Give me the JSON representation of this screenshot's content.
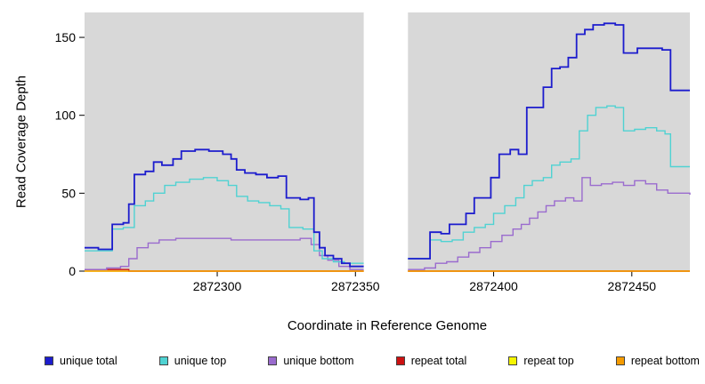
{
  "chart_data": {
    "type": "line",
    "subtype": "step",
    "title": "",
    "xlabel": "Coordinate in Reference Genome",
    "ylabel": "Read Coverage Depth",
    "xlim": [
      2872252,
      2872471
    ],
    "ylim": [
      0,
      166
    ],
    "x_ticks": [
      2872300,
      2872350,
      2872400,
      2872450
    ],
    "y_ticks": [
      0,
      50,
      100,
      150
    ],
    "gap_region": [
      2872353,
      2872369
    ],
    "panel_background": "#d8d8d8",
    "gap_color": "#ffffff",
    "legend_position": "bottom",
    "grid": false,
    "draw_order": [
      4,
      3,
      5,
      2,
      1,
      0
    ],
    "series": [
      {
        "name": "unique total",
        "color": "#1c1ccd",
        "width": 1.8,
        "segments": [
          [
            [
              2872252,
              15
            ],
            [
              2872257,
              14
            ],
            [
              2872262,
              30
            ],
            [
              2872266,
              31
            ],
            [
              2872268,
              43
            ],
            [
              2872270,
              62
            ],
            [
              2872274,
              64
            ],
            [
              2872277,
              70
            ],
            [
              2872280,
              68
            ],
            [
              2872284,
              72
            ],
            [
              2872287,
              77
            ],
            [
              2872292,
              78
            ],
            [
              2872297,
              77
            ],
            [
              2872302,
              75
            ],
            [
              2872305,
              72
            ],
            [
              2872307,
              65
            ],
            [
              2872310,
              63
            ],
            [
              2872314,
              62
            ],
            [
              2872318,
              60
            ],
            [
              2872322,
              61
            ],
            [
              2872325,
              47
            ],
            [
              2872330,
              46
            ],
            [
              2872333,
              47
            ],
            [
              2872335,
              25
            ],
            [
              2872337,
              15
            ],
            [
              2872339,
              10
            ],
            [
              2872342,
              8
            ],
            [
              2872345,
              5
            ],
            [
              2872348,
              3
            ],
            [
              2872353,
              3
            ]
          ],
          [
            [
              2872369,
              8
            ],
            [
              2872374,
              8
            ],
            [
              2872377,
              25
            ],
            [
              2872381,
              24
            ],
            [
              2872384,
              30
            ],
            [
              2872387,
              30
            ],
            [
              2872390,
              37
            ],
            [
              2872393,
              47
            ],
            [
              2872396,
              47
            ],
            [
              2872399,
              60
            ],
            [
              2872402,
              75
            ],
            [
              2872406,
              78
            ],
            [
              2872409,
              75
            ],
            [
              2872412,
              105
            ],
            [
              2872415,
              105
            ],
            [
              2872418,
              118
            ],
            [
              2872421,
              130
            ],
            [
              2872424,
              131
            ],
            [
              2872427,
              137
            ],
            [
              2872430,
              152
            ],
            [
              2872433,
              155
            ],
            [
              2872436,
              158
            ],
            [
              2872440,
              159
            ],
            [
              2872444,
              158
            ],
            [
              2872447,
              140
            ],
            [
              2872450,
              140
            ],
            [
              2872452,
              143
            ],
            [
              2872457,
              143
            ],
            [
              2872461,
              142
            ],
            [
              2872464,
              116
            ],
            [
              2872471,
              116
            ]
          ]
        ]
      },
      {
        "name": "unique top",
        "color": "#4fd2d2",
        "width": 1.4,
        "segments": [
          [
            [
              2872252,
              13
            ],
            [
              2872262,
              27
            ],
            [
              2872266,
              28
            ],
            [
              2872270,
              42
            ],
            [
              2872274,
              45
            ],
            [
              2872277,
              50
            ],
            [
              2872281,
              55
            ],
            [
              2872285,
              57
            ],
            [
              2872290,
              59
            ],
            [
              2872295,
              60
            ],
            [
              2872300,
              58
            ],
            [
              2872304,
              55
            ],
            [
              2872307,
              48
            ],
            [
              2872311,
              45
            ],
            [
              2872315,
              44
            ],
            [
              2872319,
              42
            ],
            [
              2872323,
              40
            ],
            [
              2872326,
              28
            ],
            [
              2872331,
              27
            ],
            [
              2872335,
              13
            ],
            [
              2872338,
              8
            ],
            [
              2872342,
              6
            ],
            [
              2872346,
              5
            ],
            [
              2872353,
              5
            ]
          ],
          [
            [
              2872369,
              8
            ],
            [
              2872374,
              8
            ],
            [
              2872377,
              20
            ],
            [
              2872381,
              19
            ],
            [
              2872385,
              20
            ],
            [
              2872389,
              25
            ],
            [
              2872393,
              28
            ],
            [
              2872397,
              30
            ],
            [
              2872400,
              37
            ],
            [
              2872404,
              42
            ],
            [
              2872408,
              47
            ],
            [
              2872411,
              55
            ],
            [
              2872414,
              58
            ],
            [
              2872418,
              60
            ],
            [
              2872421,
              68
            ],
            [
              2872424,
              70
            ],
            [
              2872428,
              72
            ],
            [
              2872431,
              90
            ],
            [
              2872434,
              100
            ],
            [
              2872437,
              105
            ],
            [
              2872441,
              106
            ],
            [
              2872444,
              105
            ],
            [
              2872447,
              90
            ],
            [
              2872451,
              91
            ],
            [
              2872455,
              92
            ],
            [
              2872459,
              90
            ],
            [
              2872462,
              88
            ],
            [
              2872464,
              67
            ],
            [
              2872471,
              67
            ]
          ]
        ]
      },
      {
        "name": "unique bottom",
        "color": "#9a6bce",
        "width": 1.4,
        "segments": [
          [
            [
              2872252,
              1
            ],
            [
              2872260,
              2
            ],
            [
              2872265,
              3
            ],
            [
              2872268,
              8
            ],
            [
              2872271,
              15
            ],
            [
              2872275,
              18
            ],
            [
              2872279,
              20
            ],
            [
              2872285,
              21
            ],
            [
              2872295,
              21
            ],
            [
              2872305,
              20
            ],
            [
              2872315,
              20
            ],
            [
              2872324,
              20
            ],
            [
              2872330,
              21
            ],
            [
              2872334,
              17
            ],
            [
              2872337,
              10
            ],
            [
              2872340,
              7
            ],
            [
              2872344,
              3
            ],
            [
              2872348,
              1
            ],
            [
              2872353,
              1
            ]
          ],
          [
            [
              2872369,
              1
            ],
            [
              2872375,
              2
            ],
            [
              2872379,
              5
            ],
            [
              2872383,
              6
            ],
            [
              2872387,
              9
            ],
            [
              2872391,
              12
            ],
            [
              2872395,
              15
            ],
            [
              2872399,
              19
            ],
            [
              2872403,
              23
            ],
            [
              2872407,
              27
            ],
            [
              2872410,
              30
            ],
            [
              2872413,
              34
            ],
            [
              2872416,
              38
            ],
            [
              2872419,
              42
            ],
            [
              2872422,
              45
            ],
            [
              2872426,
              47
            ],
            [
              2872429,
              45
            ],
            [
              2872432,
              60
            ],
            [
              2872435,
              55
            ],
            [
              2872439,
              56
            ],
            [
              2872443,
              57
            ],
            [
              2872447,
              55
            ],
            [
              2872451,
              58
            ],
            [
              2872455,
              56
            ],
            [
              2872459,
              52
            ],
            [
              2872463,
              50
            ],
            [
              2872471,
              49
            ]
          ]
        ]
      },
      {
        "name": "repeat total",
        "color": "#cc1111",
        "width": 1.4,
        "segments": [
          [
            [
              2872252,
              1
            ],
            [
              2872268,
              0
            ],
            [
              2872353,
              0
            ]
          ],
          [
            [
              2872369,
              0
            ],
            [
              2872471,
              0
            ]
          ]
        ]
      },
      {
        "name": "repeat top",
        "color": "#f5f500",
        "width": 1.4,
        "segments": [
          [
            [
              2872252,
              0
            ],
            [
              2872353,
              0
            ]
          ],
          [
            [
              2872369,
              0
            ],
            [
              2872471,
              0
            ]
          ]
        ]
      },
      {
        "name": "repeat bottom",
        "color": "#f59b00",
        "width": 1.6,
        "segments": [
          [
            [
              2872252,
              0
            ],
            [
              2872353,
              0
            ]
          ],
          [
            [
              2872369,
              0
            ],
            [
              2872471,
              0
            ]
          ]
        ]
      }
    ]
  }
}
